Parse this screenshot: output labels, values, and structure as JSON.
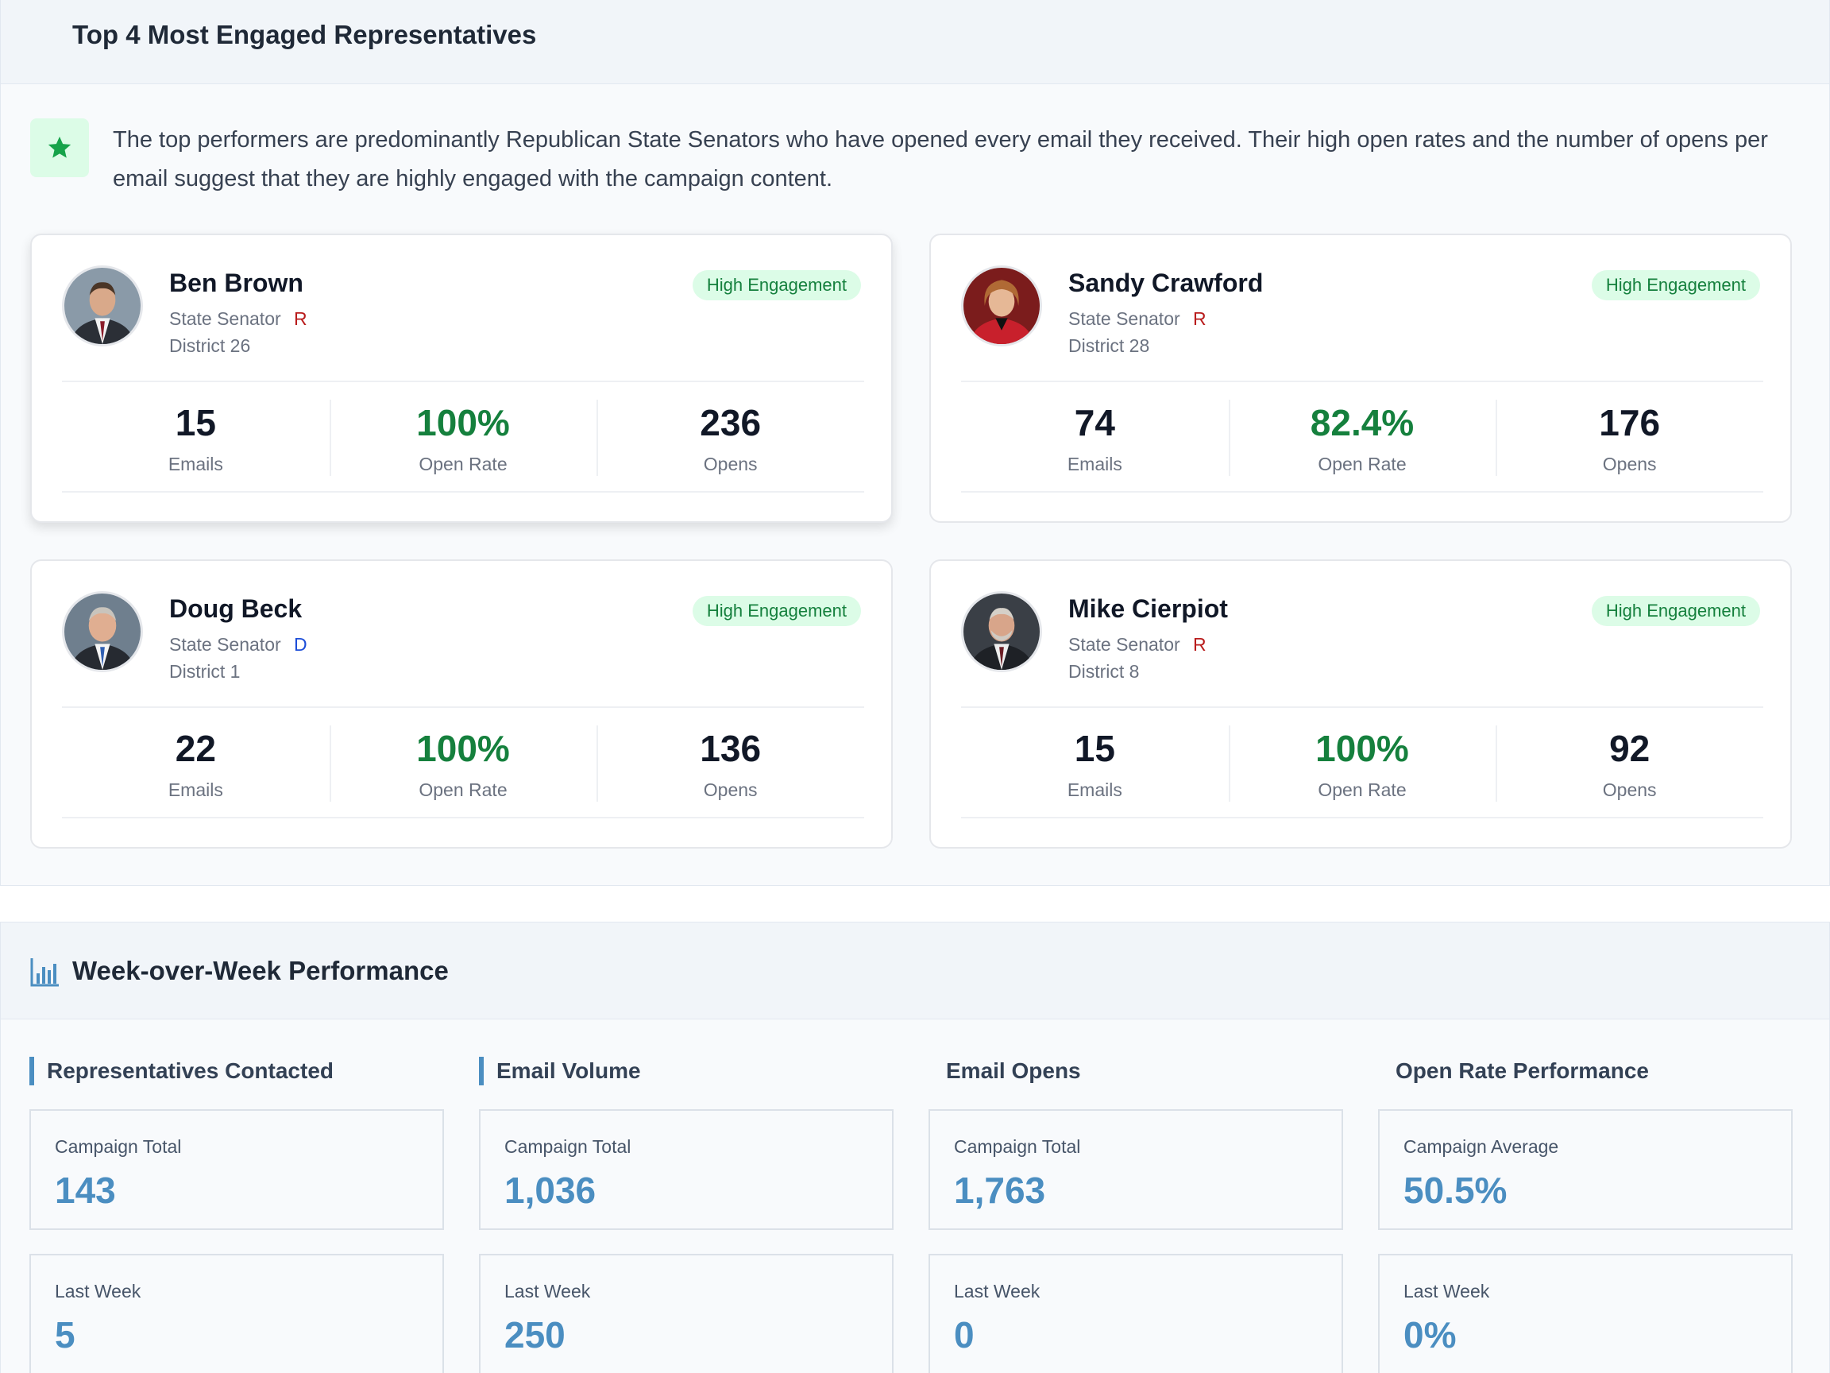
{
  "top_section": {
    "title": "Top 4 Most Engaged Representatives",
    "insight": "The top performers are predominantly Republican State Senators who have opened every email they received. Their high open rates and the number of opens per email suggest that they are highly engaged with the campaign content.",
    "representatives": [
      {
        "name": "Ben Brown",
        "title": "State Senator",
        "party": "R",
        "district": "District 26",
        "badge": "High Engagement",
        "stats": {
          "emails": "15",
          "emails_label": "Emails",
          "open_rate": "100%",
          "open_rate_label": "Open Rate",
          "opens": "236",
          "opens_label": "Opens"
        }
      },
      {
        "name": "Sandy Crawford",
        "title": "State Senator",
        "party": "R",
        "district": "District 28",
        "badge": "High Engagement",
        "stats": {
          "emails": "74",
          "emails_label": "Emails",
          "open_rate": "82.4%",
          "open_rate_label": "Open Rate",
          "opens": "176",
          "opens_label": "Opens"
        }
      },
      {
        "name": "Doug Beck",
        "title": "State Senator",
        "party": "D",
        "district": "District 1",
        "badge": "High Engagement",
        "stats": {
          "emails": "22",
          "emails_label": "Emails",
          "open_rate": "100%",
          "open_rate_label": "Open Rate",
          "opens": "136",
          "opens_label": "Opens"
        }
      },
      {
        "name": "Mike Cierpiot",
        "title": "State Senator",
        "party": "R",
        "district": "District 8",
        "badge": "High Engagement",
        "stats": {
          "emails": "15",
          "emails_label": "Emails",
          "open_rate": "100%",
          "open_rate_label": "Open Rate",
          "opens": "92",
          "opens_label": "Opens"
        }
      }
    ]
  },
  "weekly_section": {
    "title": "Week-over-Week Performance",
    "metrics": [
      {
        "heading": "Representatives Contacted",
        "total_label": "Campaign Total",
        "total_value": "143",
        "week_label": "Last Week",
        "week_value": "5"
      },
      {
        "heading": "Email Volume",
        "total_label": "Campaign Total",
        "total_value": "1,036",
        "week_label": "Last Week",
        "week_value": "250"
      },
      {
        "heading": "Email Opens",
        "total_label": "Campaign Total",
        "total_value": "1,763",
        "week_label": "Last Week",
        "week_value": "0"
      },
      {
        "heading": "Open Rate Performance",
        "total_label": "Campaign Average",
        "total_value": "50.5%",
        "week_label": "Last Week",
        "week_value": "0%"
      }
    ]
  },
  "colors": {
    "accent": "#4b8ec1",
    "success": "#15803d",
    "republican": "#b91c1c",
    "democrat": "#1d4ed8"
  },
  "icons": {
    "insight": "star-icon",
    "performance": "bar-chart-icon"
  }
}
